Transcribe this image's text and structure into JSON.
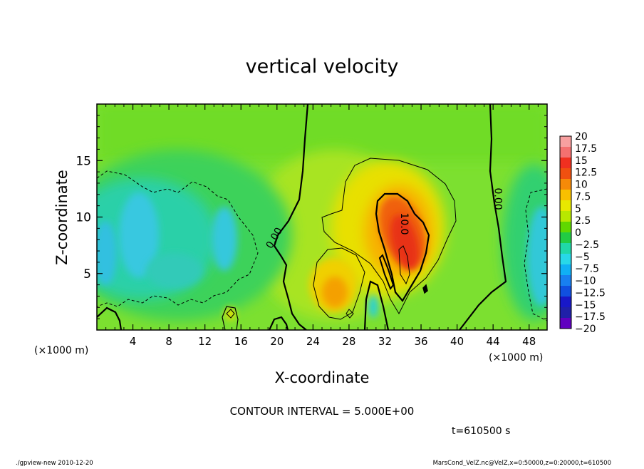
{
  "chart_data": {
    "type": "heatmap",
    "title": "vertical velocity",
    "xlabel": "X-coordinate",
    "ylabel": "Z-coordinate",
    "x_unit_left": "(×1000 m)",
    "x_unit_right": "(×1000 m)",
    "xlim": [
      0,
      50
    ],
    "ylim": [
      0,
      20
    ],
    "x_ticks": [
      4,
      8,
      12,
      16,
      20,
      24,
      28,
      32,
      36,
      40,
      44,
      48
    ],
    "y_ticks": [
      5,
      10,
      15
    ],
    "colorbar": {
      "labels": [
        "20",
        "17.5",
        "15",
        "12.5",
        "10",
        "7.5",
        "5",
        "2.5",
        "0",
        "−2.5",
        "−5",
        "−7.5",
        "−10",
        "−12.5",
        "−15",
        "−17.5",
        "−20"
      ],
      "colors": [
        "#f8a0a0",
        "#f47070",
        "#f03020",
        "#f05010",
        "#f68a08",
        "#f8c000",
        "#e8e800",
        "#b8e800",
        "#60d800",
        "#22cc44",
        "#20d8a8",
        "#28d8e8",
        "#10b0f4",
        "#1880f0",
        "#1050e0",
        "#1818c8",
        "#2020a8",
        "#6000c0"
      ]
    },
    "contour_interval": "CONTOUR INTERVAL = 5.000E+00",
    "contour_labels": [
      {
        "text": "0.00",
        "x": 20.0,
        "z": 8.0
      },
      {
        "text": "10.0",
        "x": 33.8,
        "z": 9.4
      },
      {
        "text": "0.00",
        "x": 44.2,
        "z": 11.6
      }
    ],
    "time": "t=610500 s",
    "footer_left": "./gpview-new   2010-12-20",
    "footer_right": "MarsCond_VelZ.nc@VelZ,x=0:50000,z=0:20000,t=610500"
  }
}
